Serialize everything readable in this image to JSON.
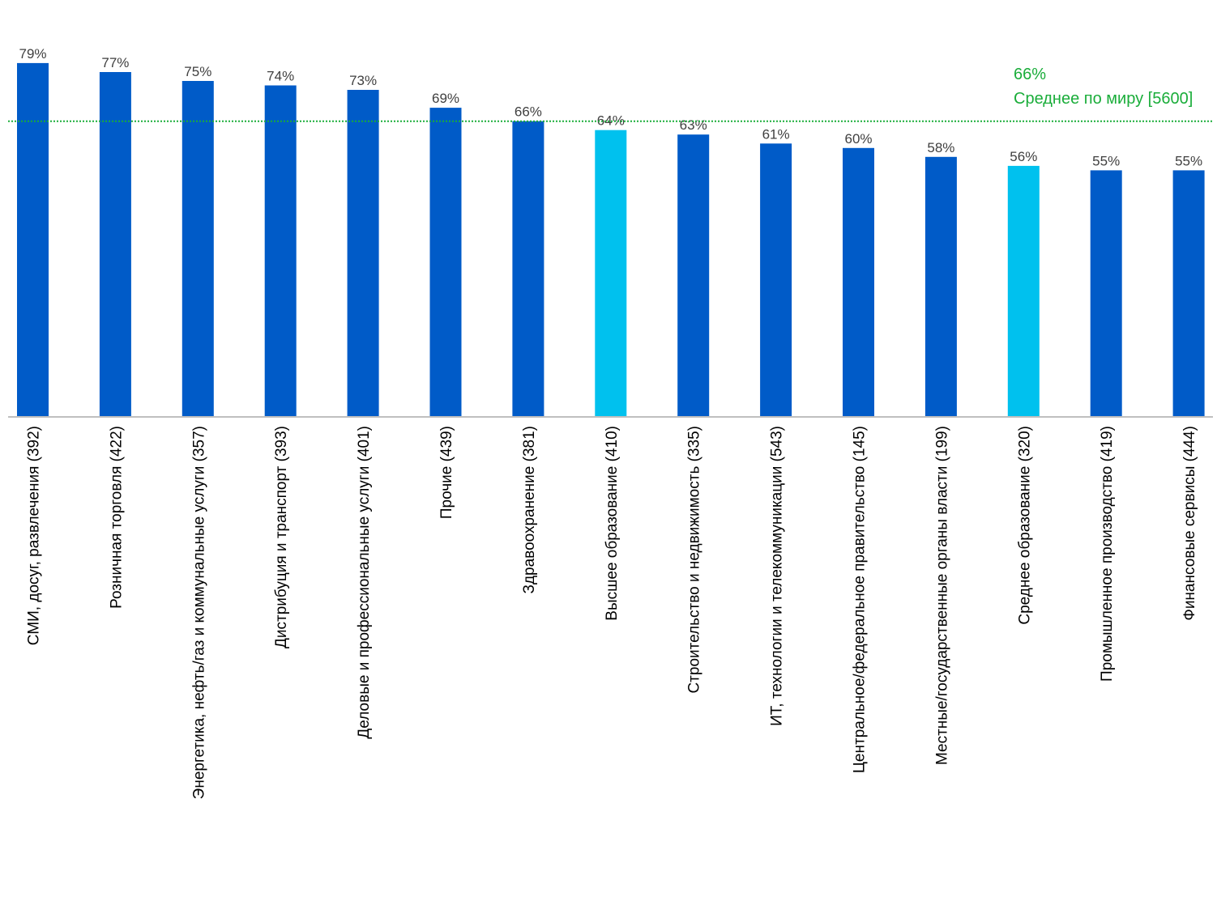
{
  "chart_data": {
    "type": "bar",
    "categories": [
      "СМИ, досуг, развлечения (392)",
      "Розничная торговля (422)",
      "Энергетика, нефть/газ и коммунальные услуги (357)",
      "Дистрибуция и транспорт (393)",
      "Деловые и профессиональные услуги (401)",
      "Прочие (439)",
      "Здравоохранение (381)",
      "Высшее образование (410)",
      "Строительство и недвижимость (335)",
      "ИТ, технологии и телекоммуникации (543)",
      "Центральное/федеральное правительство (145)",
      "Местные/государственные органы власти (199)",
      "Среднее образование (320)",
      "Промышленное производство (419)",
      "Финансовые сервисы (444)"
    ],
    "values": [
      79,
      77,
      75,
      74,
      73,
      69,
      66,
      64,
      63,
      61,
      60,
      58,
      56,
      55,
      55
    ],
    "value_labels": [
      "79%",
      "77%",
      "75%",
      "74%",
      "73%",
      "69%",
      "66%",
      "64%",
      "63%",
      "61%",
      "60%",
      "58%",
      "56%",
      "55%",
      "55%"
    ],
    "highlighted": [
      false,
      false,
      false,
      false,
      false,
      false,
      false,
      true,
      false,
      false,
      false,
      false,
      true,
      false,
      false
    ],
    "ylim": [
      0,
      80
    ],
    "grid": false,
    "colors": {
      "bar": "#005BC8",
      "highlight": "#00C1EE",
      "reference": "#1AAD3A",
      "axis": "#BFBFBF"
    },
    "reference_line": {
      "value": 66,
      "value_label": "66%",
      "label": "Среднее по миру [5600]"
    }
  }
}
